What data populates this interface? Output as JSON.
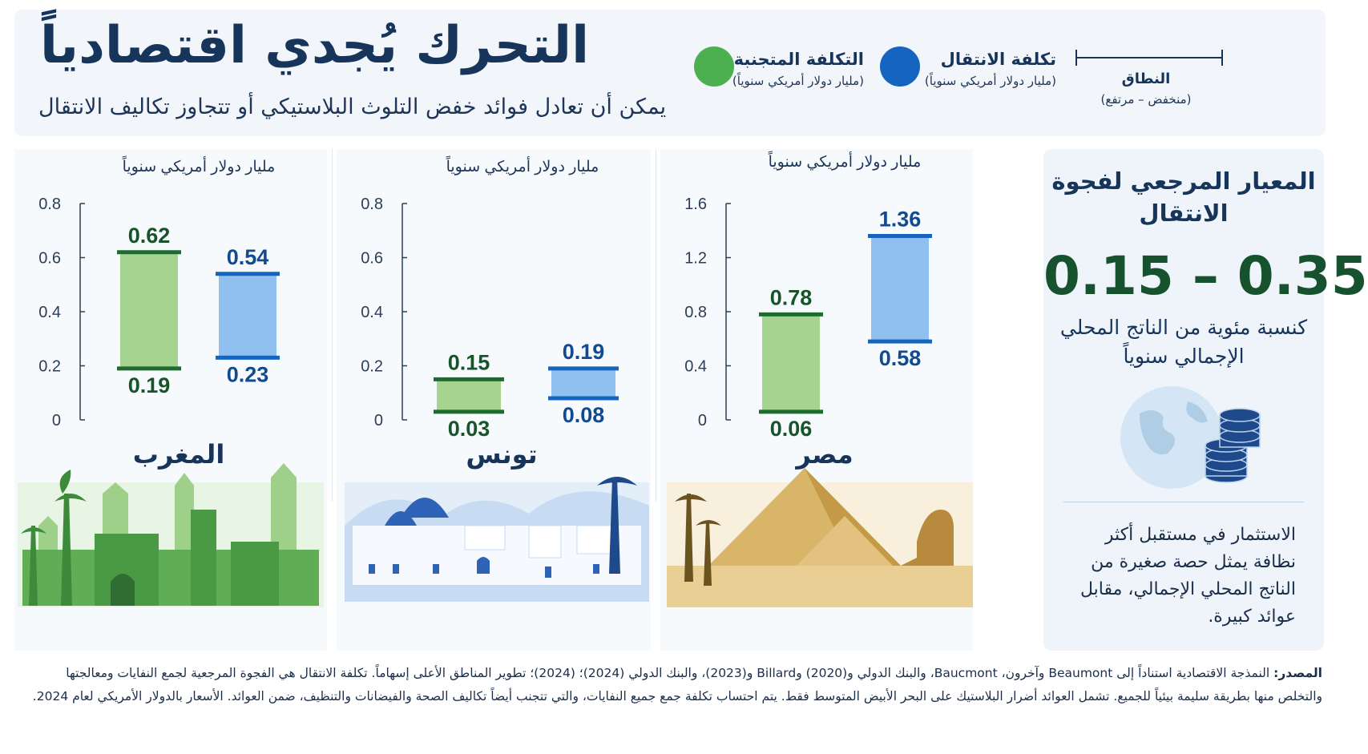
{
  "header": {
    "title": "التحرك يُجدي اقتصادياً",
    "subtitle": "يمكن أن تعادل فوائد خفض التلوث البلاستيكي أو تتجاوز تكاليف الانتقال"
  },
  "legend": {
    "avoided": {
      "label": "التكلفة المتجنبة",
      "unit": "(مليار دولار أمريكي سنوياً)",
      "color": "#4caf50"
    },
    "transition": {
      "label": "تكلفة الانتقال",
      "unit": "(مليار دولار أمريكي سنوياً)",
      "color": "#1565c0"
    },
    "range": {
      "label": "النطاق",
      "unit": "(منخفض – مرتفع)"
    }
  },
  "colors": {
    "avoided_fill": "#a5d490",
    "avoided_edge": "#1e6b2e",
    "avoided_text": "#17542a",
    "transition_fill": "#8fc0ef",
    "transition_edge": "#1565c0",
    "transition_text": "#124a8f"
  },
  "chart_data": [
    {
      "type": "bar",
      "country": "المغرب",
      "ylabel": "مليار دولار أمريكي سنوياً",
      "ylim": [
        0,
        0.8
      ],
      "yticks": [
        "0",
        "0.2",
        "0.4",
        "0.6",
        "0.8"
      ],
      "series": [
        {
          "name": "التكلفة المتجنبة",
          "low": 0.19,
          "high": 0.62,
          "low_label": "0.19",
          "high_label": "0.62"
        },
        {
          "name": "تكلفة الانتقال",
          "low": 0.23,
          "high": 0.54,
          "low_label": "0.23",
          "high_label": "0.54"
        }
      ]
    },
    {
      "type": "bar",
      "country": "تونس",
      "ylabel": "مليار دولار أمريكي سنوياً",
      "ylim": [
        0,
        0.8
      ],
      "yticks": [
        "0",
        "0.2",
        "0.4",
        "0.6",
        "0.8"
      ],
      "series": [
        {
          "name": "التكلفة المتجنبة",
          "low": 0.03,
          "high": 0.15,
          "low_label": "0.03",
          "high_label": "0.15"
        },
        {
          "name": "تكلفة الانتقال",
          "low": 0.08,
          "high": 0.19,
          "low_label": "0.08",
          "high_label": "0.19"
        }
      ]
    },
    {
      "type": "bar",
      "country": "مصر",
      "ylabel": "مليار دولار أمريكي سنوياً",
      "ylim": [
        0,
        1.6
      ],
      "yticks": [
        "0",
        "0.4",
        "0.8",
        "1.2",
        "1.6"
      ],
      "series": [
        {
          "name": "التكلفة المتجنبة",
          "low": 0.06,
          "high": 0.78,
          "low_label": "0.06",
          "high_label": "0.78"
        },
        {
          "name": "تكلفة الانتقال",
          "low": 0.58,
          "high": 1.36,
          "low_label": "0.58",
          "high_label": "1.36"
        }
      ]
    }
  ],
  "reference": {
    "title": "المعيار المرجعي لفجوة الانتقال",
    "range": "0.15 – 0.35",
    "unit": "كنسبة مئوية من الناتج المحلي الإجمالي سنوياً",
    "description": "الاستثمار في مستقبل أكثر نظافة يمثل حصة صغيرة من الناتج المحلي الإجمالي، مقابل عوائد كبيرة."
  },
  "source": {
    "label": "المصدر:",
    "text": "النمذجة الاقتصادية استناداً إلى Beaumont وآخرون، Baucmont، والبنك الدولي و(2020) وBillard و(2023)، والبنك الدولي (2024)؛ (2024)؛ تطوير المناطق الأعلى إسهاماً. تكلفة الانتقال هي الفجوة المرجعية لجمع النفايات ومعالجتها والتخلص منها بطريقة سليمة بيئياً للجميع. تشمل العوائد أضرار البلاستيك على البحر الأبيض المتوسط فقط. يتم احتساب تكلفة جمع جميع النفايات، والتي تتجنب أيضاً تكاليف الصحة والفيضانات والتنظيف، ضمن العوائد. الأسعار بالدولار الأمريكي لعام 2024."
  }
}
